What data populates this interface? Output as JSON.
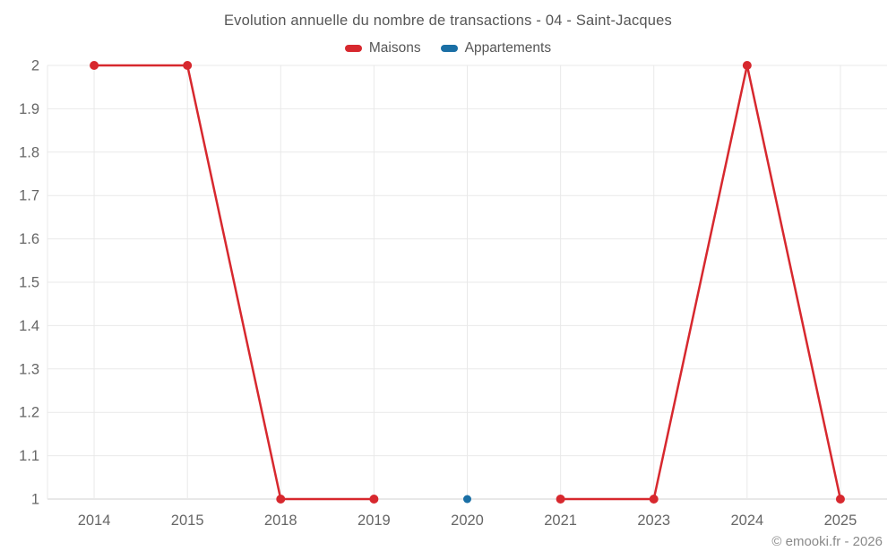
{
  "chart": {
    "title": "Evolution annuelle du nombre de transactions - 04 - Saint-Jacques"
  },
  "legend": {
    "items": [
      {
        "label": "Maisons",
        "color": "#d7282e"
      },
      {
        "label": "Appartements",
        "color": "#1a6fa5"
      }
    ]
  },
  "footer": {
    "copyright": "© emooki.fr - 2026"
  },
  "colors": {
    "grid": "#e9e9e9",
    "axis_line": "#d2d2d2",
    "tick_text": "#666666"
  },
  "chart_data": {
    "type": "line",
    "title": "Evolution annuelle du nombre de transactions - 04 - Saint-Jacques",
    "categories": [
      "2014",
      "2015",
      "2018",
      "2019",
      "2020",
      "2021",
      "2023",
      "2024",
      "2025"
    ],
    "series": [
      {
        "name": "Maisons",
        "color": "#d7282e",
        "point_radius": 5,
        "values": [
          2,
          2,
          1,
          1,
          null,
          1,
          1,
          2,
          1
        ]
      },
      {
        "name": "Appartements",
        "color": "#1a6fa5",
        "point_radius": 4.5,
        "values": [
          null,
          null,
          null,
          null,
          1,
          null,
          null,
          null,
          null
        ]
      }
    ],
    "xlabel": "",
    "ylabel": "",
    "ylim": [
      1,
      2
    ],
    "ytick_step": 0.1,
    "ytick_labels": [
      "1",
      "1.1",
      "1.2",
      "1.3",
      "1.4",
      "1.5",
      "1.6",
      "1.7",
      "1.8",
      "1.9",
      "2"
    ],
    "grid": true,
    "legend_position": "top"
  }
}
